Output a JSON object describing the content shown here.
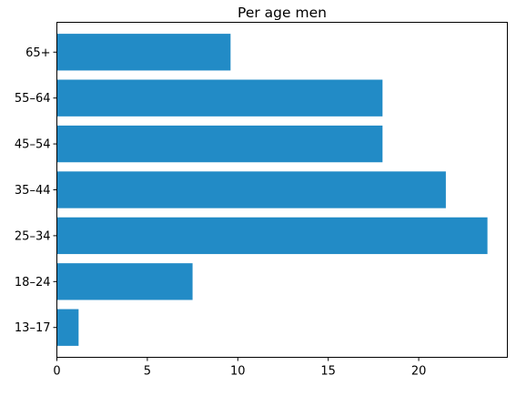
{
  "chart_data": {
    "type": "bar",
    "orientation": "horizontal",
    "title": "Per age men",
    "xlabel": "",
    "ylabel": "",
    "categories": [
      "13–17",
      "18–24",
      "25–34",
      "35–44",
      "45–54",
      "55–64",
      "65+"
    ],
    "values": [
      1.2,
      7.5,
      23.8,
      21.5,
      18.0,
      18.0,
      9.6
    ],
    "xlim": [
      0,
      24.9
    ],
    "x_ticks": [
      0,
      5,
      10,
      15,
      20
    ],
    "grid": false,
    "bar_color": "#228bc6"
  }
}
